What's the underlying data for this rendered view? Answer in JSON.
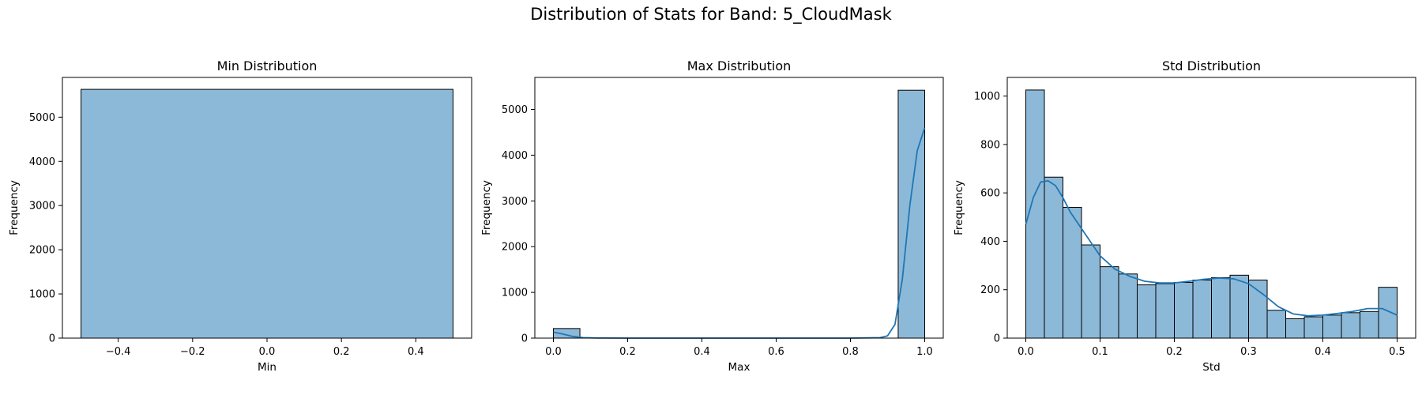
{
  "suptitle": "Distribution of Stats for Band: 5_CloudMask",
  "colors": {
    "bar_fill": "#8db9d9",
    "bar_edge": "#000000",
    "kde_line": "#1f77b4"
  },
  "chart_data": [
    {
      "type": "bar",
      "title": "Min Distribution",
      "xlabel": "Min",
      "ylabel": "Frequency",
      "xlim": [
        -0.55,
        0.55
      ],
      "ylim": [
        0,
        5900
      ],
      "xticks": [
        -0.4,
        -0.2,
        0.0,
        0.2,
        0.4
      ],
      "xtick_labels": [
        "−0.4",
        "−0.2",
        "0.0",
        "0.2",
        "0.4"
      ],
      "yticks": [
        0,
        1000,
        2000,
        3000,
        4000,
        5000
      ],
      "bins": [
        {
          "x0": -0.5,
          "x1": 0.5,
          "count": 5630
        }
      ],
      "kde": null
    },
    {
      "type": "bar",
      "title": "Max Distribution",
      "xlabel": "Max",
      "ylabel": "Frequency",
      "xlim": [
        -0.05,
        1.05
      ],
      "ylim": [
        0,
        5700
      ],
      "xticks": [
        0.0,
        0.2,
        0.4,
        0.6,
        0.8,
        1.0
      ],
      "xtick_labels": [
        "0.0",
        "0.2",
        "0.4",
        "0.6",
        "0.8",
        "1.0"
      ],
      "yticks": [
        0,
        1000,
        2000,
        3000,
        4000,
        5000
      ],
      "bins": [
        {
          "x0": 0.0,
          "x1": 0.0714,
          "count": 210
        },
        {
          "x0": 0.9286,
          "x1": 1.0,
          "count": 5420
        }
      ],
      "kde": {
        "x": [
          0.0,
          0.02,
          0.05,
          0.08,
          0.12,
          0.2,
          0.4,
          0.6,
          0.8,
          0.88,
          0.9,
          0.92,
          0.94,
          0.96,
          0.98,
          1.0
        ],
        "y": [
          130,
          100,
          40,
          10,
          2,
          0,
          0,
          0,
          0,
          10,
          50,
          300,
          1300,
          2900,
          4100,
          4600
        ]
      }
    },
    {
      "type": "bar",
      "title": "Std Distribution",
      "xlabel": "Std",
      "ylabel": "Frequency",
      "xlim": [
        -0.025,
        0.525
      ],
      "ylim": [
        0,
        1077
      ],
      "xticks": [
        0.0,
        0.1,
        0.2,
        0.3,
        0.4,
        0.5
      ],
      "xtick_labels": [
        "0.0",
        "0.1",
        "0.2",
        "0.3",
        "0.4",
        "0.5"
      ],
      "yticks": [
        0,
        200,
        400,
        600,
        800,
        1000
      ],
      "bin_start": 0.0,
      "bin_width": 0.025,
      "counts": [
        1025,
        665,
        540,
        385,
        295,
        265,
        220,
        225,
        230,
        240,
        250,
        260,
        240,
        115,
        80,
        88,
        95,
        105,
        110,
        210
      ],
      "kde": {
        "x": [
          0.0,
          0.01,
          0.02,
          0.03,
          0.04,
          0.05,
          0.06,
          0.08,
          0.1,
          0.12,
          0.14,
          0.16,
          0.18,
          0.2,
          0.22,
          0.24,
          0.26,
          0.28,
          0.3,
          0.32,
          0.34,
          0.36,
          0.38,
          0.4,
          0.42,
          0.44,
          0.46,
          0.48,
          0.5
        ],
        "y": [
          470,
          580,
          645,
          650,
          630,
          580,
          520,
          430,
          340,
          285,
          255,
          235,
          228,
          228,
          235,
          243,
          248,
          245,
          225,
          180,
          130,
          100,
          92,
          95,
          102,
          110,
          122,
          122,
          95
        ]
      }
    }
  ]
}
